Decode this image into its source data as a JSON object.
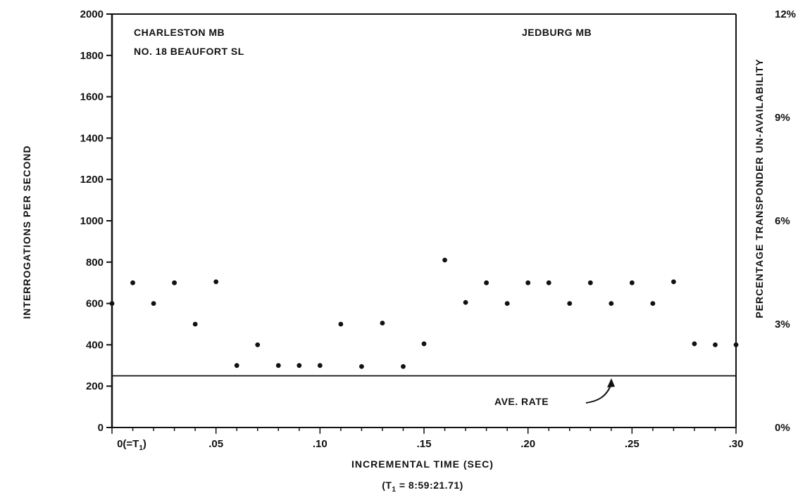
{
  "chart_data": {
    "type": "scatter",
    "annotations": {
      "top_left_line1": "CHARLESTON MB",
      "top_left_line2": "NO. 18 BEAUFORT SL",
      "top_right": "JEDBURG MB",
      "average_label": "AVE. RATE"
    },
    "xlabel": "INCREMENTAL TIME (SEC)",
    "xlabel_note": "(T",
    "xlabel_note_sub": "1",
    "xlabel_note_rest": " = 8:59:21.71)",
    "ylabel": "INTERROGATIONS PER SECOND",
    "ylabel_right": "PERCENTAGE TRANSPONDER UN-AVAILABILITY",
    "x_tick_labels": [
      "0(=T",
      ".05",
      ".10",
      ".15",
      ".20",
      ".25",
      ".30"
    ],
    "x_tick_first_sub": "1",
    "x_tick_first_close": ")",
    "y_tick_labels": [
      "0",
      "200",
      "400",
      "600",
      "800",
      "1000",
      "1200",
      "1400",
      "1600",
      "1800",
      "2000"
    ],
    "y_right_tick_labels": [
      "0%",
      "3%",
      "6%",
      "9%",
      "12%"
    ],
    "xlim": [
      0,
      0.3
    ],
    "ylim": [
      0,
      2000
    ],
    "y_right_lim": [
      0,
      12
    ],
    "average_rate": 250,
    "x": [
      0.0,
      0.01,
      0.02,
      0.03,
      0.04,
      0.05,
      0.06,
      0.07,
      0.08,
      0.09,
      0.1,
      0.11,
      0.12,
      0.13,
      0.14,
      0.15,
      0.16,
      0.17,
      0.18,
      0.19,
      0.2,
      0.21,
      0.22,
      0.23,
      0.24,
      0.25,
      0.26,
      0.27,
      0.28,
      0.29,
      0.3
    ],
    "y": [
      600,
      700,
      600,
      700,
      500,
      705,
      300,
      400,
      300,
      300,
      300,
      500,
      295,
      505,
      295,
      405,
      810,
      605,
      700,
      600,
      700,
      700,
      600,
      700,
      600,
      700,
      600,
      705,
      405,
      400,
      400
    ],
    "grid": false
  }
}
